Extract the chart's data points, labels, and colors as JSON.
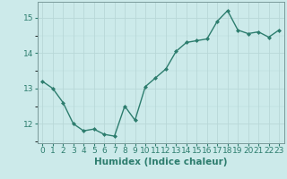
{
  "x": [
    0,
    1,
    2,
    3,
    4,
    5,
    6,
    7,
    8,
    9,
    10,
    11,
    12,
    13,
    14,
    15,
    16,
    17,
    18,
    19,
    20,
    21,
    22,
    23
  ],
  "y": [
    13.2,
    13.0,
    12.6,
    12.0,
    11.8,
    11.85,
    11.7,
    11.65,
    12.5,
    12.1,
    13.05,
    13.3,
    13.55,
    14.05,
    14.3,
    14.35,
    14.4,
    14.9,
    15.2,
    14.65,
    14.55,
    14.6,
    14.45,
    14.65
  ],
  "line_color": "#2d7d6e",
  "marker": "D",
  "marker_size": 2.0,
  "line_width": 1.0,
  "xlabel": "Humidex (Indice chaleur)",
  "xlim": [
    -0.5,
    23.5
  ],
  "ylim": [
    11.45,
    15.45
  ],
  "yticks": [
    12,
    13,
    14,
    15
  ],
  "xticks": [
    0,
    1,
    2,
    3,
    4,
    5,
    6,
    7,
    8,
    9,
    10,
    11,
    12,
    13,
    14,
    15,
    16,
    17,
    18,
    19,
    20,
    21,
    22,
    23
  ],
  "bg_color": "#cceaea",
  "grid_color": "#b8d8d8",
  "xlabel_fontsize": 7.5,
  "tick_fontsize": 6.5
}
